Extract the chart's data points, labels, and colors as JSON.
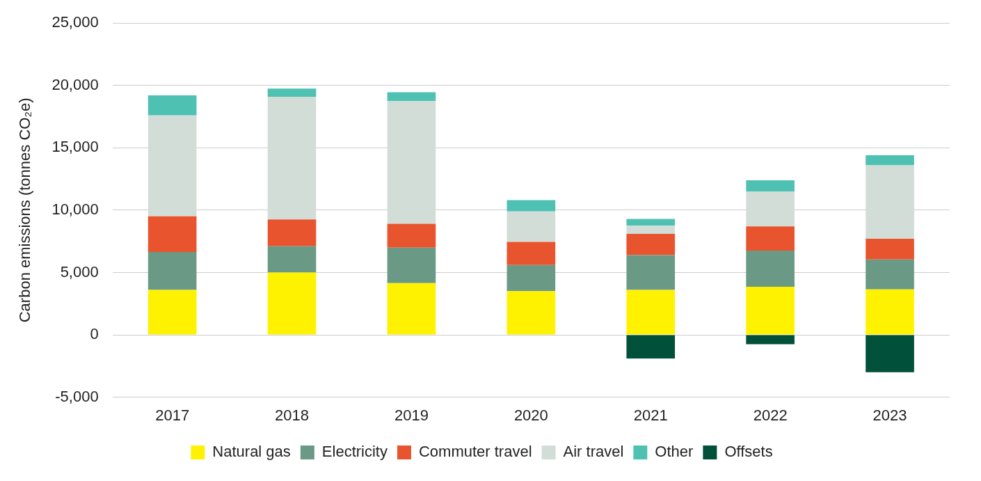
{
  "chart_data": {
    "type": "bar",
    "stacked": true,
    "ylabel": "Carbon emissions (tonnes CO₂e)",
    "categories": [
      "2017",
      "2018",
      "2019",
      "2020",
      "2021",
      "2022",
      "2023"
    ],
    "series": [
      {
        "name": "Natural gas",
        "color": "#fff200",
        "values": [
          3600,
          5000,
          4150,
          3500,
          3600,
          3850,
          3650
        ]
      },
      {
        "name": "Electricity",
        "color": "#6a9a86",
        "values": [
          3050,
          2100,
          2850,
          2100,
          2800,
          2900,
          2400
        ]
      },
      {
        "name": "Commuter travel",
        "color": "#e8542e",
        "values": [
          2850,
          2150,
          1900,
          1850,
          1700,
          1950,
          1650
        ]
      },
      {
        "name": "Air travel",
        "color": "#d3ddd8",
        "values": [
          8100,
          9850,
          9850,
          2450,
          650,
          2800,
          5900
        ]
      },
      {
        "name": "Other",
        "color": "#4fc1b2",
        "values": [
          1600,
          650,
          700,
          900,
          550,
          900,
          800
        ]
      },
      {
        "name": "Offsets",
        "color": "#00503a",
        "values": [
          0,
          0,
          0,
          0,
          -1900,
          -750,
          -3000
        ]
      }
    ],
    "ylim": [
      -5000,
      25000
    ],
    "yticks": [
      {
        "value": -5000,
        "label": "-5,000"
      },
      0,
      {
        "value": 5000,
        "label": "5,000"
      },
      {
        "value": 10000,
        "label": "10,000"
      },
      {
        "value": 15000,
        "label": "15,000"
      },
      {
        "value": 20000,
        "label": "20,000"
      },
      {
        "value": 25000,
        "label": "25,000"
      }
    ],
    "grid": "y",
    "legend": "bottom"
  }
}
